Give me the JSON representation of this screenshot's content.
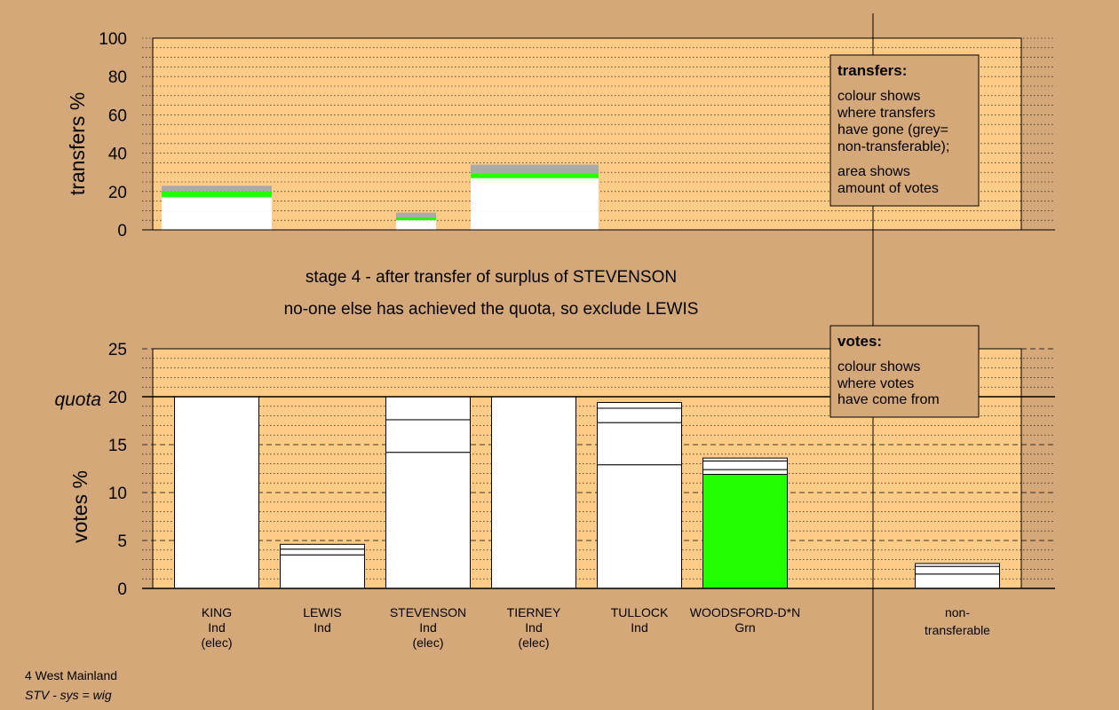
{
  "chart_data": [
    {
      "type": "bar",
      "stacked": true,
      "ylabel": "transfers %",
      "ylim": [
        0,
        100
      ],
      "yticks": [
        0,
        20,
        40,
        60,
        80,
        100
      ],
      "legend": {
        "title": "transfers:",
        "lines": [
          "colour shows",
          "where transfers",
          "have gone (grey=",
          "non-transferable);"
        ],
        "lines2": [
          "area shows",
          "amount of votes"
        ],
        "placement": "top-right"
      },
      "bars": [
        {
          "segments": [
            {
              "value": 10,
              "color": "#ffffff"
            },
            {
              "value": 7,
              "color": "#ffffff"
            },
            {
              "value": 3,
              "color": "#22ff00"
            },
            {
              "value": 3,
              "color": "#aaaaaa"
            }
          ]
        },
        {
          "segments": [
            {
              "value": 5,
              "color": "#ffffff"
            },
            {
              "value": 1.5,
              "color": "#22ff00"
            },
            {
              "value": 2.5,
              "color": "#aaaaaa"
            }
          ]
        },
        {
          "segments": [
            {
              "value": 10,
              "color": "#ffffff"
            },
            {
              "value": 17,
              "color": "#ffffff"
            },
            {
              "value": 2.5,
              "color": "#22ff00"
            },
            {
              "value": 4.5,
              "color": "#aaaaaa"
            }
          ]
        }
      ]
    },
    {
      "type": "bar",
      "stacked": true,
      "ylabel": "votes %",
      "ylim": [
        0,
        25
      ],
      "yticks": [
        0,
        5,
        10,
        15,
        20,
        25
      ],
      "quota": 20,
      "quota_label": "quota",
      "legend": {
        "title": "votes:",
        "lines": [
          "colour shows",
          "where votes",
          "have come from"
        ],
        "placement": "top-right"
      },
      "candidates": [
        {
          "name": "KING",
          "party": "Ind",
          "status": "(elec)",
          "segments": [
            {
              "value": 20,
              "color": "#ffffff"
            }
          ]
        },
        {
          "name": "LEWIS",
          "party": "Ind",
          "status": "",
          "segments": [
            {
              "value": 3.5,
              "color": "#ffffff"
            },
            {
              "value": 0.6,
              "color": "#ffffff"
            },
            {
              "value": 0.5,
              "color": "#ffffff"
            }
          ]
        },
        {
          "name": "STEVENSON",
          "party": "Ind",
          "status": "(elec)",
          "segments": [
            {
              "value": 14.2,
              "color": "#ffffff"
            },
            {
              "value": 3.4,
              "color": "#ffffff"
            },
            {
              "value": 2.4,
              "color": "#ffffff"
            }
          ]
        },
        {
          "name": "TIERNEY",
          "party": "Ind",
          "status": "(elec)",
          "segments": [
            {
              "value": 20,
              "color": "#ffffff"
            }
          ]
        },
        {
          "name": "TULLOCK",
          "party": "Ind",
          "status": "",
          "segments": [
            {
              "value": 12.9,
              "color": "#ffffff"
            },
            {
              "value": 4.4,
              "color": "#ffffff"
            },
            {
              "value": 1.5,
              "color": "#ffffff"
            },
            {
              "value": 0.6,
              "color": "#ffffff"
            }
          ]
        },
        {
          "name": "WOODSFORD-D*N",
          "party": "Grn",
          "status": "",
          "segments": [
            {
              "value": 11.9,
              "color": "#22ff00"
            },
            {
              "value": 0.5,
              "color": "#ffffff"
            },
            {
              "value": 0.9,
              "color": "#ffffff"
            },
            {
              "value": 0.3,
              "color": "#ffffff"
            }
          ]
        }
      ],
      "nontransferable": {
        "label_line1": "non-",
        "label_line2": "transferable",
        "segments": [
          {
            "value": 1.5,
            "color": "#ffffff"
          },
          {
            "value": 0.8,
            "color": "#ffffff"
          },
          {
            "value": 0.3,
            "color": "#ffffff"
          }
        ]
      }
    }
  ],
  "stage": {
    "line1": "stage 4 - after transfer of surplus of STEVENSON",
    "line2": "no-one else has achieved the quota, so exclude LEWIS"
  },
  "footer": {
    "constituency": "4 West Mainland",
    "system": "STV - sys = wig"
  },
  "colors": {
    "background": "#d4a878",
    "plot_background": "#ffcc88",
    "transfer_green": "#22ff00",
    "nontransferable_grey": "#aaaaaa"
  }
}
